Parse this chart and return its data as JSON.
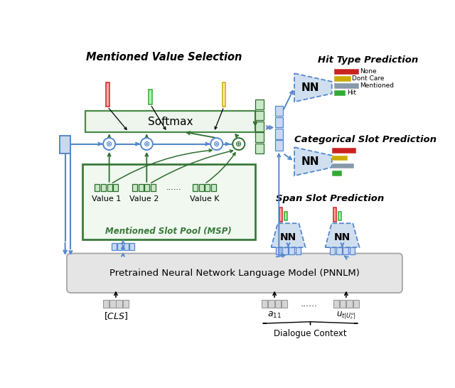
{
  "bg_color": "#ffffff",
  "blue": "#5588cc",
  "dkblue": "#3366aa",
  "green": "#2d6e2d",
  "red": "#cc2222",
  "yellow": "#ccaa00",
  "gray": "#8899aa",
  "gbar": "#33aa33",
  "legend_labels": [
    "None",
    "Dont Care",
    "Mentioned",
    "Hit"
  ],
  "pnnlm_text": "Pretrained Neural Network Language Model (PNNLM)",
  "softmax_text": "Softmax",
  "msp_text": "Mentioned Slot Pool (MSP)",
  "title_mvs": "Mentioned Value Selection",
  "title_htp": "Hit Type Prediction",
  "title_csp": "Categorical Slot Prediction",
  "title_ssp": "Span Slot Prediction",
  "value_labels": [
    "Value 1",
    "Value 2",
    "Value K"
  ],
  "dialogue_context": "Dialogue Context"
}
